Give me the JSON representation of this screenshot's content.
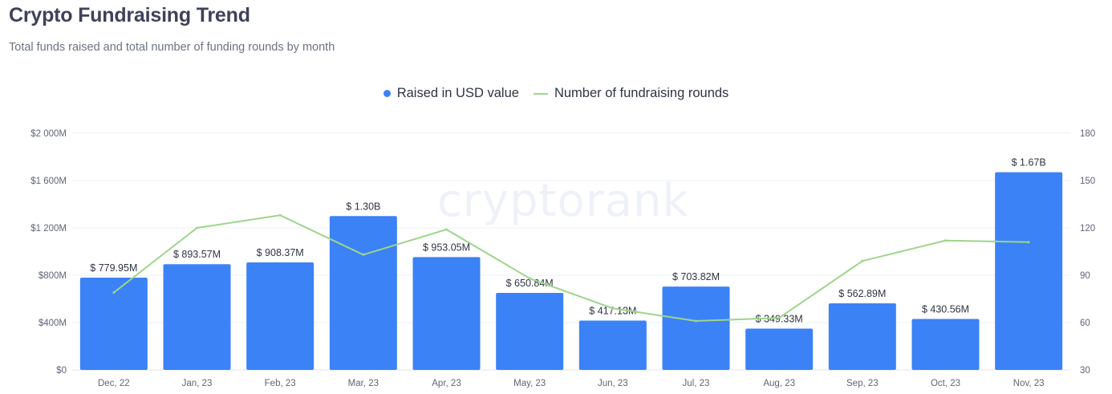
{
  "header": {
    "title": "Crypto Fundraising Trend",
    "subtitle": "Total funds raised and total number of funding rounds by month"
  },
  "legend": {
    "bar_label": "Raised in USD value",
    "line_label": "Number of fundraising rounds"
  },
  "watermark": "cryptorank",
  "colors": {
    "bar": "#3b82f6",
    "line": "#9dd58b",
    "grid": "#eef0f3",
    "title": "#3d4259"
  },
  "chart_data": {
    "type": "bar",
    "title": "Crypto Fundraising Trend",
    "categories": [
      "Dec, 22",
      "Jan, 23",
      "Feb, 23",
      "Mar, 23",
      "Apr, 23",
      "May, 23",
      "Jun, 23",
      "Jul, 23",
      "Aug, 23",
      "Sep, 23",
      "Oct, 23",
      "Nov, 23"
    ],
    "series": [
      {
        "name": "Raised in USD value",
        "type": "bar",
        "axis": "left",
        "values": [
          779.95,
          893.57,
          908.37,
          1300,
          953.05,
          650.84,
          417.13,
          703.82,
          349.33,
          562.89,
          430.56,
          1670
        ],
        "labels": [
          "$ 779.95M",
          "$ 893.57M",
          "$ 908.37M",
          "$ 1.30B",
          "$ 953.05M",
          "$ 650.84M",
          "$ 417.13M",
          "$ 703.82M",
          "$ 349.33M",
          "$ 562.89M",
          "$ 430.56M",
          "$ 1.67B"
        ]
      },
      {
        "name": "Number of fundraising rounds",
        "type": "line",
        "axis": "right",
        "values": [
          79,
          120,
          128,
          103,
          119,
          88,
          69,
          61,
          63,
          99,
          112,
          111
        ]
      }
    ],
    "y_left": {
      "min": 0,
      "max": 2000,
      "ticks": [
        0,
        400,
        800,
        1200,
        1600,
        2000
      ],
      "tick_labels": [
        "$0",
        "$400M",
        "$800M",
        "$1 200M",
        "$1 600M",
        "$2 000M"
      ]
    },
    "y_right": {
      "min": 30,
      "max": 180,
      "ticks": [
        30,
        60,
        90,
        120,
        150,
        180
      ],
      "tick_labels": [
        "30",
        "60",
        "90",
        "120",
        "150",
        "180"
      ]
    },
    "legend_position": "top-center",
    "grid": true
  }
}
